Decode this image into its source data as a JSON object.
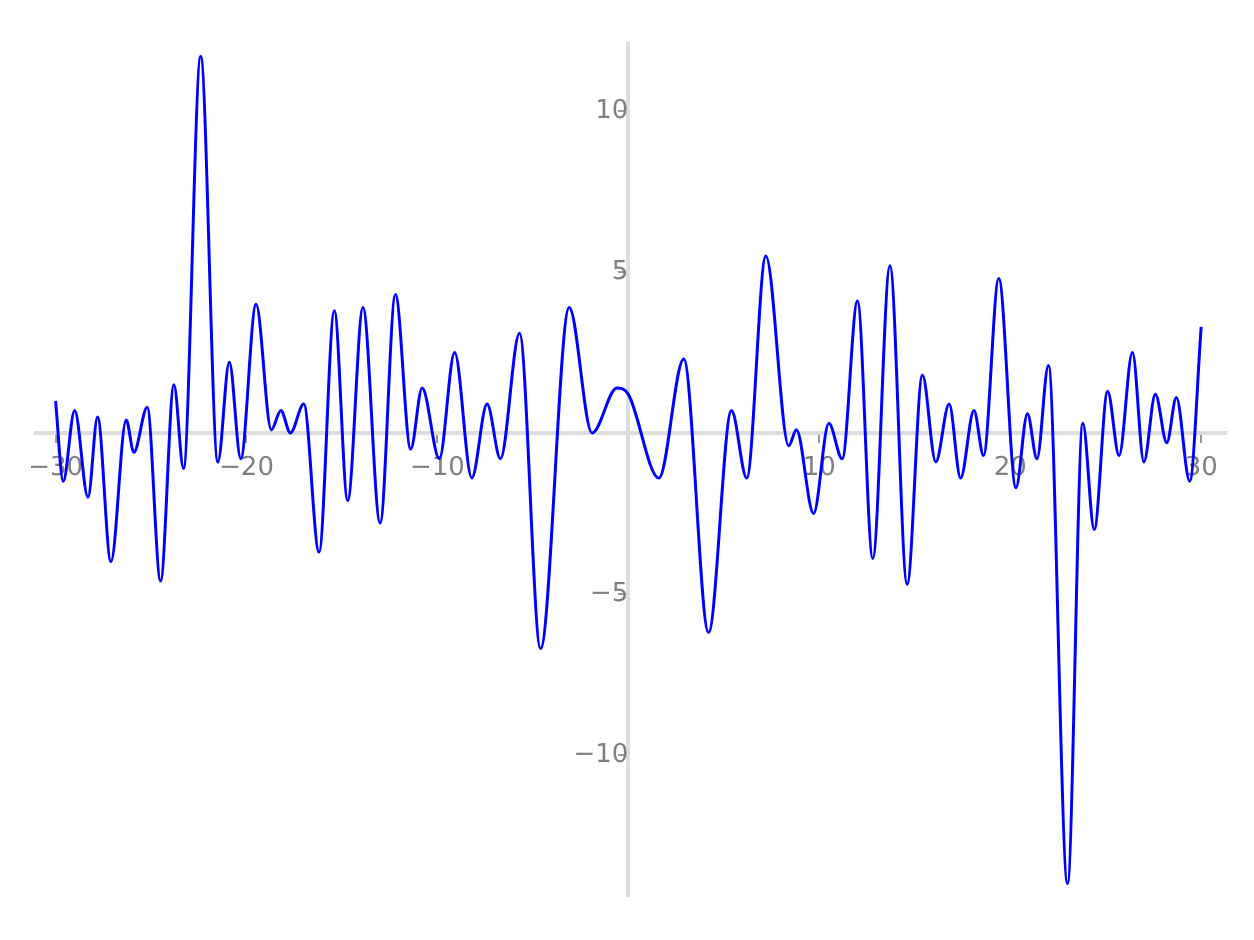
{
  "chart_data": {
    "type": "line",
    "marker": "none",
    "grid": false,
    "legend": false,
    "xlim": [
      -31,
      31.3
    ],
    "ylim": [
      -14.4,
      12.1
    ],
    "xticks": [
      -30,
      -20,
      -10,
      10,
      20,
      30
    ],
    "yticks": [
      -10,
      -5,
      5,
      10
    ],
    "series": [
      {
        "color": "#0000ff",
        "x": [
          -30,
          -29.6,
          -29.0,
          -28.3,
          -27.8,
          -27.1,
          -26.3,
          -25.9,
          -25.2,
          -24.5,
          -23.8,
          -23.3,
          -22.4,
          -21.5,
          -20.9,
          -20.3,
          -19.5,
          -18.7,
          -18.2,
          -17.7,
          -17.0,
          -16.2,
          -15.4,
          -14.7,
          -13.9,
          -13.0,
          -12.2,
          -11.4,
          -10.8,
          -9.9,
          -9.1,
          -8.2,
          -7.4,
          -6.7,
          -5.7,
          -4.6,
          -3.1,
          -1.9,
          -0.6,
          0,
          1.6,
          2.9,
          4.2,
          5.4,
          6.2,
          7.2,
          8.4,
          8.8,
          9.7,
          10.5,
          11.2,
          12.0,
          12.8,
          13.7,
          14.6,
          15.4,
          16.1,
          16.8,
          17.4,
          18.1,
          18.6,
          19.4,
          20.3,
          20.9,
          21.4,
          22.0,
          23.0,
          23.8,
          24.4,
          25.1,
          25.7,
          26.4,
          27.0,
          27.6,
          28.2,
          28.7,
          29.4,
          30
        ],
        "values": [
          1.0,
          -1.5,
          0.7,
          -2.0,
          0.5,
          -4.0,
          0.4,
          -0.6,
          0.8,
          -4.6,
          1.5,
          -1.1,
          11.7,
          -0.9,
          2.2,
          -0.8,
          4.0,
          0.1,
          0.7,
          0,
          0.9,
          -3.7,
          3.8,
          -2.1,
          3.9,
          -2.8,
          4.3,
          -0.5,
          1.4,
          -0.8,
          2.5,
          -1.4,
          0.9,
          -0.8,
          3.1,
          -6.7,
          3.9,
          0,
          1.4,
          1.2,
          -1.4,
          2.3,
          -6.2,
          0.7,
          -1.4,
          5.5,
          -0.4,
          0.1,
          -2.5,
          0.3,
          -0.8,
          4.1,
          -3.9,
          5.2,
          -4.7,
          1.8,
          -0.9,
          0.9,
          -1.4,
          0.7,
          -0.7,
          4.8,
          -1.7,
          0.6,
          -0.8,
          2.1,
          -14.0,
          0.3,
          -3.0,
          1.3,
          -0.7,
          2.5,
          -0.9,
          1.2,
          -0.3,
          1.1,
          -1.5,
          3.3
        ]
      }
    ]
  }
}
